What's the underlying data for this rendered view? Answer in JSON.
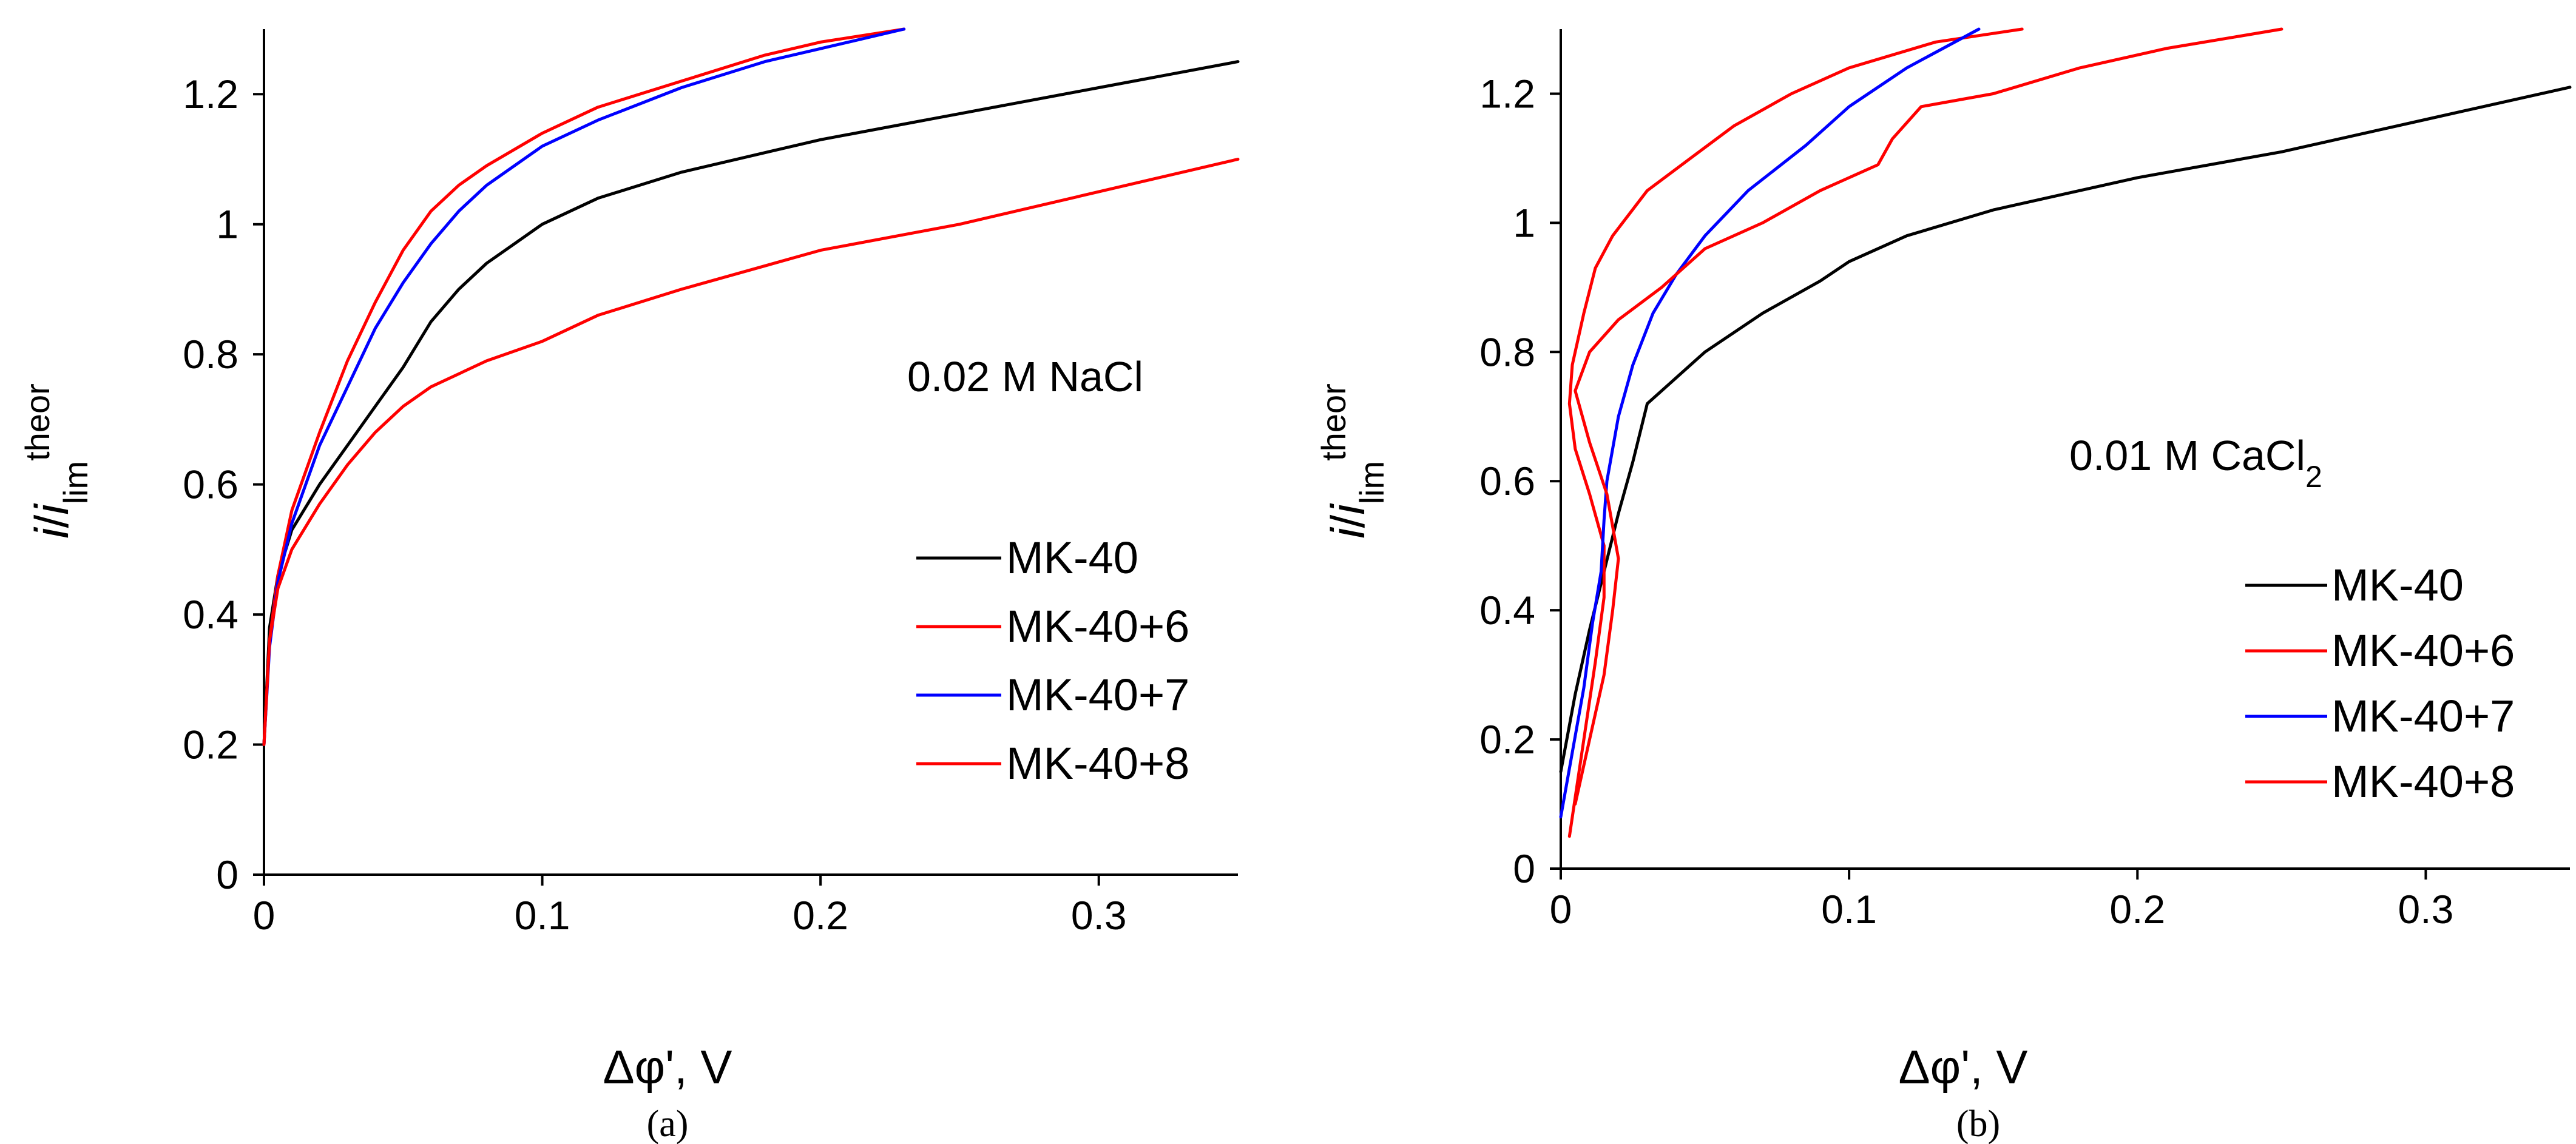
{
  "colors": {
    "black": "#000000",
    "red": "#ff0000",
    "blue": "#0000ff"
  },
  "chart_data": [
    {
      "type": "line",
      "panel_label": "(a)",
      "annotation": "0.02 M NaCl",
      "xlabel": "Δφ', V",
      "ylabel": {
        "italic_i": "i",
        "slash": "/",
        "italic_i2": "i",
        "sub": "lim",
        "sup": "theor"
      },
      "xlim": [
        0,
        0.35
      ],
      "ylim": [
        0,
        1.3
      ],
      "xticks": [
        0,
        0.1,
        0.2,
        0.3
      ],
      "xtick_labels": [
        "0",
        "0.1",
        "0.2",
        "0.3"
      ],
      "yticks": [
        0,
        0.2,
        0.4,
        0.6,
        0.8,
        1.0,
        1.2
      ],
      "ytick_labels": [
        "0",
        "0.2",
        "0.4",
        "0.6",
        "0.8",
        "1",
        "1.2"
      ],
      "series": [
        {
          "name": "MK-40",
          "color": "#000000",
          "x": [
            0,
            0.002,
            0.005,
            0.01,
            0.02,
            0.03,
            0.04,
            0.05,
            0.06,
            0.07,
            0.08,
            0.09,
            0.1,
            0.12,
            0.15,
            0.18,
            0.2,
            0.25,
            0.3,
            0.35
          ],
          "y": [
            0.2,
            0.38,
            0.46,
            0.53,
            0.6,
            0.66,
            0.72,
            0.78,
            0.85,
            0.9,
            0.94,
            0.97,
            1.0,
            1.04,
            1.08,
            1.11,
            1.13,
            1.17,
            1.21,
            1.25
          ]
        },
        {
          "name": "MK-40+6",
          "color": "#ff0000",
          "x": [
            0,
            0.002,
            0.005,
            0.01,
            0.02,
            0.03,
            0.04,
            0.05,
            0.06,
            0.07,
            0.08,
            0.1,
            0.12,
            0.15,
            0.18,
            0.2,
            0.23
          ],
          "y": [
            0.2,
            0.36,
            0.46,
            0.56,
            0.68,
            0.79,
            0.88,
            0.96,
            1.02,
            1.06,
            1.09,
            1.14,
            1.18,
            1.22,
            1.26,
            1.28,
            1.31
          ]
        },
        {
          "name": "MK-40+7",
          "color": "#0000ff",
          "x": [
            0,
            0.002,
            0.005,
            0.01,
            0.02,
            0.03,
            0.04,
            0.05,
            0.06,
            0.07,
            0.08,
            0.1,
            0.12,
            0.15,
            0.18,
            0.2,
            0.23
          ],
          "y": [
            0.2,
            0.35,
            0.45,
            0.54,
            0.66,
            0.75,
            0.84,
            0.91,
            0.97,
            1.02,
            1.06,
            1.12,
            1.16,
            1.21,
            1.25,
            1.27,
            1.31
          ]
        },
        {
          "name": "MK-40+8",
          "color": "#ff0000",
          "x": [
            0,
            0.002,
            0.005,
            0.01,
            0.02,
            0.03,
            0.04,
            0.05,
            0.06,
            0.08,
            0.1,
            0.12,
            0.15,
            0.2,
            0.25,
            0.3,
            0.35
          ],
          "y": [
            0.2,
            0.36,
            0.44,
            0.5,
            0.57,
            0.63,
            0.68,
            0.72,
            0.75,
            0.79,
            0.82,
            0.86,
            0.9,
            0.96,
            1.0,
            1.05,
            1.1
          ]
        }
      ]
    },
    {
      "type": "line",
      "panel_label": "(b)",
      "annotation": {
        "main": "0.01 M CaCl",
        "sub": "2"
      },
      "xlabel": "Δφ', V",
      "ylabel": {
        "italic_i": "i",
        "slash": "/",
        "italic_i2": "i",
        "sub": "lim",
        "sup": "theor"
      },
      "xlim": [
        0,
        0.35
      ],
      "ylim": [
        0,
        1.3
      ],
      "xticks": [
        0,
        0.1,
        0.2,
        0.3
      ],
      "xtick_labels": [
        "0",
        "0.1",
        "0.2",
        "0.3"
      ],
      "yticks": [
        0,
        0.2,
        0.4,
        0.6,
        0.8,
        1.0,
        1.2
      ],
      "ytick_labels": [
        "0",
        "0.2",
        "0.4",
        "0.6",
        "0.8",
        "1",
        "1.2"
      ],
      "series": [
        {
          "name": "MK-40",
          "color": "#000000",
          "x": [
            0,
            0.005,
            0.01,
            0.015,
            0.02,
            0.025,
            0.03,
            0.04,
            0.05,
            0.07,
            0.09,
            0.1,
            0.12,
            0.15,
            0.2,
            0.25,
            0.3,
            0.35
          ],
          "y": [
            0.15,
            0.27,
            0.37,
            0.46,
            0.55,
            0.63,
            0.72,
            0.76,
            0.8,
            0.86,
            0.91,
            0.94,
            0.98,
            1.02,
            1.07,
            1.11,
            1.16,
            1.21
          ]
        },
        {
          "name": "MK-40+6",
          "color": "#ff0000",
          "x": [
            0.003,
            0.008,
            0.012,
            0.015,
            0.015,
            0.01,
            0.005,
            0.003,
            0.004,
            0.008,
            0.012,
            0.018,
            0.03,
            0.045,
            0.06,
            0.08,
            0.1,
            0.13,
            0.16
          ],
          "y": [
            0.05,
            0.2,
            0.32,
            0.42,
            0.5,
            0.58,
            0.65,
            0.72,
            0.78,
            0.86,
            0.93,
            0.98,
            1.05,
            1.1,
            1.15,
            1.2,
            1.24,
            1.28,
            1.31
          ]
        },
        {
          "name": "MK-40+7",
          "color": "#0000ff",
          "x": [
            0,
            0.004,
            0.008,
            0.011,
            0.014,
            0.015,
            0.016,
            0.02,
            0.025,
            0.032,
            0.04,
            0.05,
            0.065,
            0.085,
            0.1,
            0.12,
            0.145
          ],
          "y": [
            0.08,
            0.18,
            0.28,
            0.38,
            0.46,
            0.54,
            0.6,
            0.7,
            0.78,
            0.86,
            0.92,
            0.98,
            1.05,
            1.12,
            1.18,
            1.24,
            1.31
          ]
        },
        {
          "name": "MK-40+8",
          "color": "#ff0000",
          "x": [
            0.005,
            0.01,
            0.015,
            0.018,
            0.02,
            0.016,
            0.01,
            0.005,
            0.01,
            0.02,
            0.035,
            0.05,
            0.07,
            0.09,
            0.11,
            0.115,
            0.125,
            0.15,
            0.18,
            0.21,
            0.25
          ],
          "y": [
            0.1,
            0.2,
            0.3,
            0.4,
            0.48,
            0.58,
            0.66,
            0.74,
            0.8,
            0.85,
            0.9,
            0.96,
            1.0,
            1.05,
            1.09,
            1.13,
            1.18,
            1.2,
            1.24,
            1.27,
            1.31
          ]
        }
      ]
    }
  ]
}
